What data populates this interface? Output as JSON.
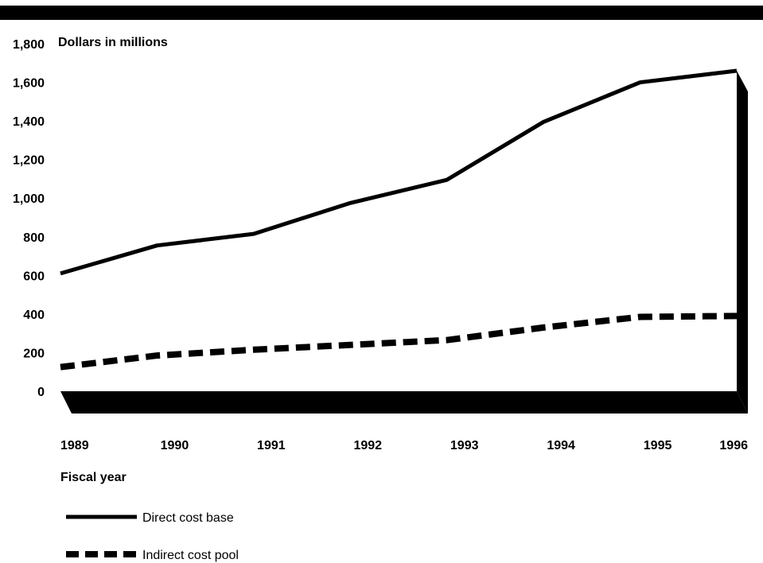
{
  "chart_data": {
    "type": "line",
    "title": "",
    "ylabel": "Dollars in millions",
    "xlabel": "Fiscal year",
    "x": [
      "1989",
      "1990",
      "1991",
      "1992",
      "1993",
      "1994",
      "1995",
      "1996"
    ],
    "yticks": [
      "0",
      "200",
      "400",
      "600",
      "800",
      "1,000",
      "1,200",
      "1,400",
      "1,600",
      "1,800"
    ],
    "ylim": [
      0,
      1800
    ],
    "grid": false,
    "legend_position": "bottom-left",
    "series": [
      {
        "name": "Direct cost base",
        "style": "solid",
        "color": "#000000",
        "values": [
          610,
          755,
          815,
          975,
          1095,
          1395,
          1600,
          1660
        ]
      },
      {
        "name": "Indirect cost pool",
        "style": "dashed",
        "color": "#000000",
        "values": [
          125,
          185,
          215,
          240,
          265,
          330,
          385,
          390
        ]
      }
    ]
  }
}
